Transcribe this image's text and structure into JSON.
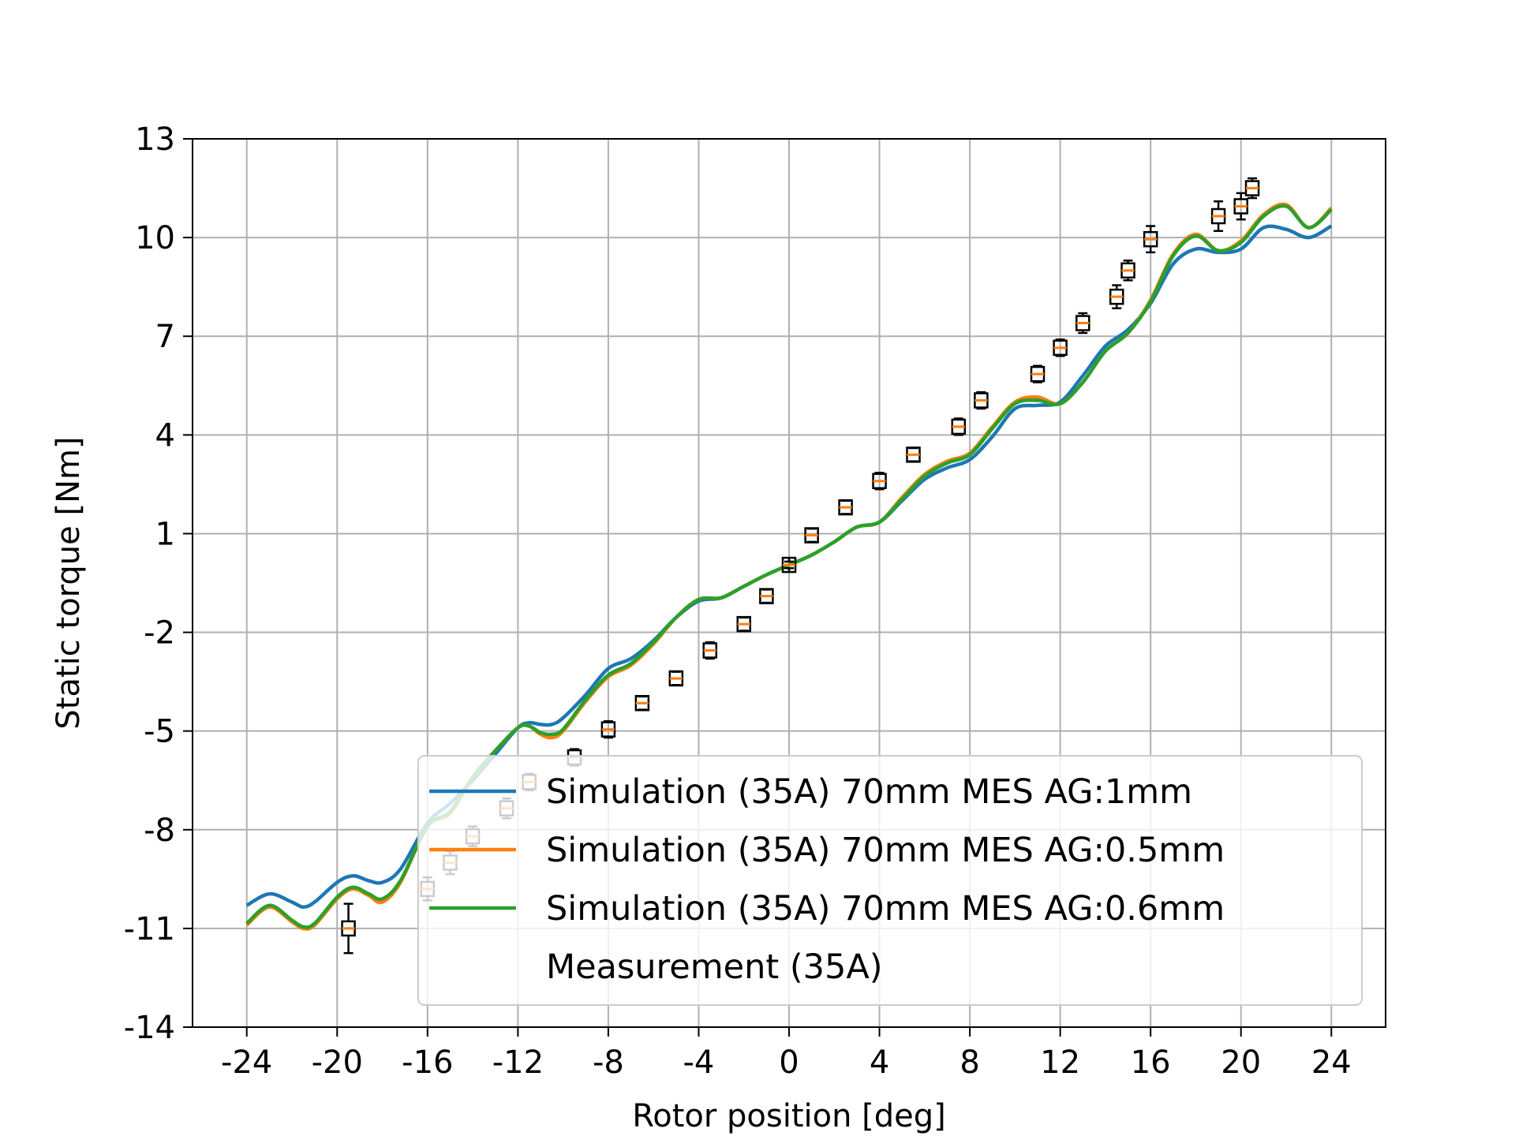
{
  "chart_data": {
    "type": "line",
    "xlabel": "Rotor position [deg]",
    "ylabel": "Static torque [Nm]",
    "xlim": [
      -26.4,
      26.4
    ],
    "ylim": [
      -14,
      13
    ],
    "x_ticks": [
      -24,
      -20,
      -16,
      -12,
      -8,
      -4,
      0,
      4,
      8,
      12,
      16,
      20,
      24
    ],
    "x_tick_labels": [
      "-24",
      "-20",
      "-16",
      "-12",
      "-8",
      "-4",
      "0",
      "4",
      "8",
      "12",
      "16",
      "20",
      "24"
    ],
    "y_ticks": [
      13,
      10,
      7,
      4,
      1,
      -2,
      -5,
      -8,
      -11,
      -14
    ],
    "y_tick_labels": [
      "13",
      "10",
      "7",
      "4",
      "1",
      "-2",
      "-5",
      "-8",
      "-11",
      "-14"
    ],
    "grid": true,
    "legend_position": "lower-right",
    "series": [
      {
        "name": "Simulation (35A) 70mm MES AG:1mm",
        "color": "#1f77b4",
        "x": [
          -24,
          -23,
          -22,
          -21.5,
          -21,
          -20,
          -19.3,
          -18.6,
          -18,
          -17.2,
          -16,
          -15,
          -14,
          -13,
          -12,
          -11.5,
          -11,
          -10.5,
          -10,
          -9,
          -8,
          -7,
          -6,
          -5,
          -4,
          -3,
          -2,
          -1,
          0,
          1,
          2,
          3,
          4,
          5,
          6,
          7,
          8,
          9,
          10,
          11,
          12,
          13,
          14,
          15,
          16,
          17,
          18,
          19,
          20,
          21,
          22,
          23,
          24
        ],
        "y": [
          -10.3,
          -9.95,
          -10.2,
          -10.35,
          -10.2,
          -9.6,
          -9.4,
          -9.55,
          -9.6,
          -9.2,
          -7.8,
          -7.2,
          -6.5,
          -5.7,
          -4.9,
          -4.75,
          -4.8,
          -4.8,
          -4.6,
          -3.9,
          -3.1,
          -2.8,
          -2.25,
          -1.55,
          -1.05,
          -0.95,
          -0.6,
          -0.25,
          0.05,
          0.35,
          0.75,
          1.2,
          1.35,
          2.0,
          2.65,
          3.0,
          3.25,
          3.95,
          4.8,
          4.9,
          5.0,
          5.8,
          6.7,
          7.2,
          8.0,
          9.2,
          9.65,
          9.55,
          9.65,
          10.3,
          10.25,
          10.0,
          10.35
        ]
      },
      {
        "name": "Simulation (35A) 70mm MES AG:0.5mm",
        "color": "#ff7f0e",
        "x": [
          -24,
          -23,
          -22,
          -21.5,
          -21,
          -20,
          -19.3,
          -18.6,
          -18,
          -17.2,
          -16,
          -15,
          -14,
          -13,
          -12,
          -11.5,
          -11,
          -10.5,
          -10,
          -9,
          -8,
          -7,
          -6,
          -5,
          -4,
          -3,
          -2,
          -1,
          0,
          1,
          2,
          3,
          4,
          5,
          6,
          7,
          8,
          9,
          10,
          11,
          12,
          13,
          14,
          15,
          16,
          17,
          18,
          19,
          20,
          21,
          22,
          23,
          24
        ],
        "y": [
          -10.9,
          -10.35,
          -10.8,
          -11.0,
          -10.9,
          -10.1,
          -9.8,
          -10.0,
          -10.2,
          -9.6,
          -7.9,
          -7.5,
          -6.4,
          -5.6,
          -4.9,
          -4.85,
          -5.1,
          -5.2,
          -5.0,
          -4.1,
          -3.35,
          -3.0,
          -2.35,
          -1.55,
          -1.0,
          -0.95,
          -0.6,
          -0.25,
          0.05,
          0.35,
          0.75,
          1.2,
          1.35,
          2.1,
          2.8,
          3.2,
          3.45,
          4.25,
          5.0,
          5.15,
          4.95,
          5.6,
          6.55,
          7.1,
          8.1,
          9.5,
          10.1,
          9.6,
          9.9,
          10.7,
          11.0,
          10.3,
          10.9
        ]
      },
      {
        "name": "Simulation (35A) 70mm MES AG:0.6mm",
        "color": "#2ca02c",
        "x": [
          -24,
          -23,
          -22,
          -21.5,
          -21,
          -20,
          -19.3,
          -18.6,
          -18,
          -17.2,
          -16,
          -15,
          -14,
          -13,
          -12,
          -11.5,
          -11,
          -10.5,
          -10,
          -9,
          -8,
          -7,
          -6,
          -5,
          -4,
          -3,
          -2,
          -1,
          0,
          1,
          2,
          3,
          4,
          5,
          6,
          7,
          8,
          9,
          10,
          11,
          12,
          13,
          14,
          15,
          16,
          17,
          18,
          19,
          20,
          21,
          22,
          23,
          24
        ],
        "y": [
          -10.85,
          -10.3,
          -10.75,
          -10.95,
          -10.85,
          -10.05,
          -9.75,
          -9.95,
          -10.1,
          -9.55,
          -7.9,
          -7.45,
          -6.4,
          -5.6,
          -4.9,
          -4.85,
          -5.05,
          -5.1,
          -4.95,
          -4.05,
          -3.3,
          -2.95,
          -2.3,
          -1.55,
          -1.0,
          -0.95,
          -0.6,
          -0.25,
          0.05,
          0.35,
          0.75,
          1.2,
          1.35,
          2.05,
          2.75,
          3.15,
          3.4,
          4.2,
          4.95,
          5.05,
          4.95,
          5.6,
          6.55,
          7.1,
          8.05,
          9.45,
          10.05,
          9.6,
          9.85,
          10.65,
          10.95,
          10.3,
          10.85
        ]
      },
      {
        "name": "Measurement (35A)",
        "type": "boxplot",
        "box_color": "#000000",
        "median_color": "#ff7f0e",
        "points": [
          {
            "x": -19.5,
            "y": -11.0,
            "err": 0.75
          },
          {
            "x": -16,
            "y": -9.8,
            "err": 0.35
          },
          {
            "x": -15,
            "y": -9.0,
            "err": 0.35
          },
          {
            "x": -14,
            "y": -8.2,
            "err": 0.3
          },
          {
            "x": -12.5,
            "y": -7.35,
            "err": 0.3
          },
          {
            "x": -11.5,
            "y": -6.55,
            "err": 0.25
          },
          {
            "x": -9.5,
            "y": -5.8,
            "err": 0.25
          },
          {
            "x": -8,
            "y": -4.95,
            "err": 0.25
          },
          {
            "x": -6.5,
            "y": -4.15,
            "err": 0.2
          },
          {
            "x": -5,
            "y": -3.4,
            "err": 0.2
          },
          {
            "x": -3.5,
            "y": -2.55,
            "err": 0.25
          },
          {
            "x": -2,
            "y": -1.75,
            "err": 0.2
          },
          {
            "x": -1,
            "y": -0.9,
            "err": 0.2
          },
          {
            "x": 0,
            "y": 0.05,
            "err": 0.1
          },
          {
            "x": 1,
            "y": 0.95,
            "err": 0.2
          },
          {
            "x": 2.5,
            "y": 1.8,
            "err": 0.2
          },
          {
            "x": 4,
            "y": 2.6,
            "err": 0.25
          },
          {
            "x": 5.5,
            "y": 3.4,
            "err": 0.2
          },
          {
            "x": 7.5,
            "y": 4.25,
            "err": 0.25
          },
          {
            "x": 8.5,
            "y": 5.05,
            "err": 0.25
          },
          {
            "x": 11,
            "y": 5.85,
            "err": 0.25
          },
          {
            "x": 12,
            "y": 6.65,
            "err": 0.25
          },
          {
            "x": 13,
            "y": 7.4,
            "err": 0.3
          },
          {
            "x": 14.5,
            "y": 8.2,
            "err": 0.35
          },
          {
            "x": 15,
            "y": 9.0,
            "err": 0.3
          },
          {
            "x": 16,
            "y": 9.95,
            "err": 0.4
          },
          {
            "x": 19,
            "y": 10.65,
            "err": 0.45
          },
          {
            "x": 20,
            "y": 10.95,
            "err": 0.4
          },
          {
            "x": 20.5,
            "y": 11.5,
            "err": 0.3
          }
        ]
      }
    ]
  }
}
